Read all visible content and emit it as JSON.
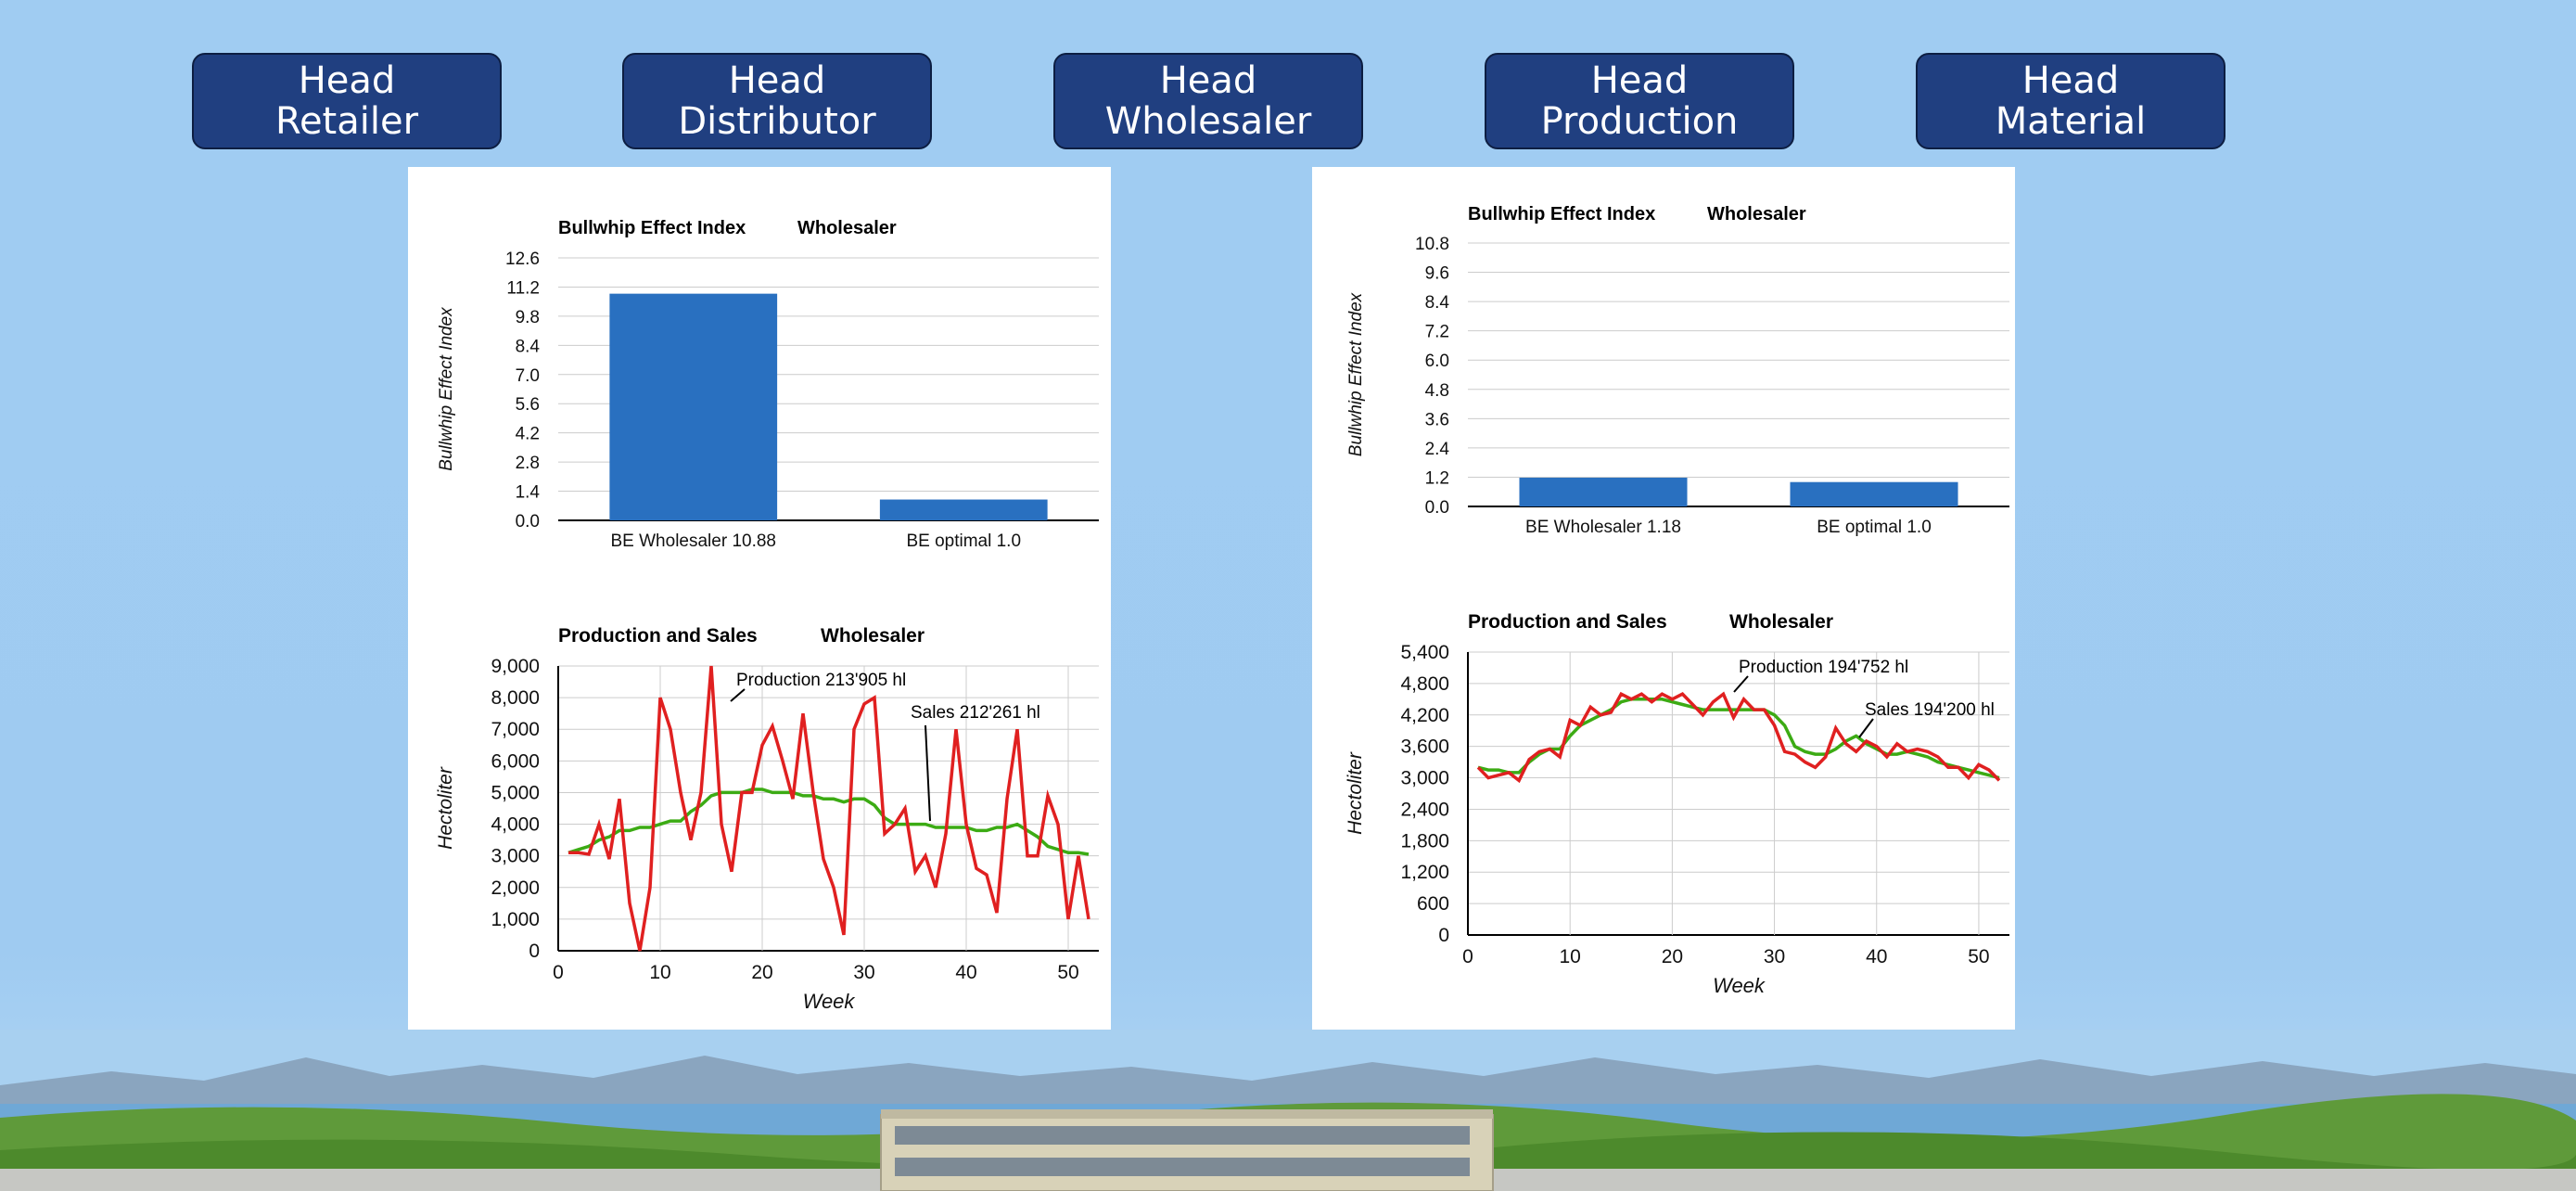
{
  "nav": [
    {
      "line1": "Head",
      "line2": "Retailer"
    },
    {
      "line1": "Head",
      "line2": "Distributor"
    },
    {
      "line1": "Head",
      "line2": "Wholesaler"
    },
    {
      "line1": "Head",
      "line2": "Production"
    },
    {
      "line1": "Head",
      "line2": "Material"
    }
  ],
  "colors": {
    "bar": "#2970c0",
    "production": "#e02020",
    "sales": "#3cab14",
    "button": "#203f80"
  },
  "panels": [
    {
      "bullwhip": {
        "title": "Bullwhip Effect Index",
        "entity": "Wholesaler",
        "ylabel": "Bullwhip Effect Index",
        "ticks": [
          "0.0",
          "1.4",
          "2.8",
          "4.2",
          "5.6",
          "7.0",
          "8.4",
          "9.8",
          "11.2",
          "12.6"
        ],
        "ymax": 12.6,
        "categories": [
          "BE Wholesaler 10.88",
          "BE optimal 1.0"
        ],
        "values": [
          10.88,
          1.0
        ]
      },
      "production": {
        "title": "Production and Sales",
        "entity": "Wholesaler",
        "ylabel": "Hectoliter",
        "xlabel": "Week",
        "yticks": [
          "0",
          "1,000",
          "2,000",
          "3,000",
          "4,000",
          "5,000",
          "6,000",
          "7,000",
          "8,000",
          "9,000"
        ],
        "ymax": 9000,
        "xticks": [
          "0",
          "10",
          "20",
          "30",
          "40",
          "50"
        ],
        "xmax": 53,
        "production_label": "Production 213'905 hl",
        "sales_label": "Sales 212'261 hl"
      }
    },
    {
      "bullwhip": {
        "title": "Bullwhip Effect Index",
        "entity": "Wholesaler",
        "ylabel": "Bullwhip Effect Index",
        "ticks": [
          "0.0",
          "1.2",
          "2.4",
          "3.6",
          "4.8",
          "6.0",
          "7.2",
          "8.4",
          "9.6",
          "10.8"
        ],
        "ymax": 10.8,
        "categories": [
          "BE Wholesaler 1.18",
          "BE optimal 1.0"
        ],
        "values": [
          1.18,
          1.0
        ]
      },
      "production": {
        "title": "Production and Sales",
        "entity": "Wholesaler",
        "ylabel": "Hectoliter",
        "xlabel": "Week",
        "yticks": [
          "0",
          "600",
          "1,200",
          "1,800",
          "2,400",
          "3,000",
          "3,600",
          "4,200",
          "4,800",
          "5,400"
        ],
        "ymax": 5400,
        "xticks": [
          "0",
          "10",
          "20",
          "30",
          "40",
          "50"
        ],
        "xmax": 53,
        "production_label": "Production 194'752 hl",
        "sales_label": "Sales 194'200 hl"
      }
    }
  ],
  "chart_data": [
    {
      "type": "bar",
      "title": "Bullwhip Effect Index",
      "ylabel": "Bullwhip Effect Index",
      "categories": [
        "BE Wholesaler 10.88",
        "BE optimal 1.0"
      ],
      "values": [
        10.88,
        1.0
      ],
      "ylim": [
        0,
        12.6
      ]
    },
    {
      "type": "line",
      "title": "Production and Sales",
      "xlabel": "Week",
      "ylabel": "Hectoliter",
      "xlim": [
        0,
        53
      ],
      "ylim": [
        0,
        9000
      ],
      "x": [
        1,
        2,
        3,
        4,
        5,
        6,
        7,
        8,
        9,
        10,
        11,
        12,
        13,
        14,
        15,
        16,
        17,
        18,
        19,
        20,
        21,
        22,
        23,
        24,
        25,
        26,
        27,
        28,
        29,
        30,
        31,
        32,
        33,
        34,
        35,
        36,
        37,
        38,
        39,
        40,
        41,
        42,
        43,
        44,
        45,
        46,
        47,
        48,
        49,
        50,
        51,
        52
      ],
      "series": [
        {
          "name": "Production 213'905 hl",
          "values": [
            3100,
            3100,
            3050,
            4000,
            2900,
            4800,
            1500,
            0,
            2000,
            8000,
            7000,
            5000,
            3500,
            5000,
            9000,
            4000,
            2500,
            5000,
            5000,
            6500,
            7100,
            6000,
            4800,
            7500,
            5000,
            2900,
            2000,
            500,
            7000,
            7800,
            8000,
            3700,
            4000,
            4500,
            2500,
            3000,
            2000,
            3700,
            7000,
            4000,
            2600,
            2400,
            1200,
            4800,
            7000,
            3000,
            3000,
            4900,
            4000,
            1000,
            3000,
            1000
          ]
        },
        {
          "name": "Sales 212'261 hl",
          "values": [
            3100,
            3200,
            3300,
            3500,
            3600,
            3800,
            3800,
            3900,
            3900,
            4000,
            4100,
            4100,
            4400,
            4600,
            4900,
            5000,
            5000,
            5000,
            5100,
            5100,
            5000,
            5000,
            5000,
            4900,
            4900,
            4800,
            4800,
            4700,
            4800,
            4800,
            4600,
            4200,
            4000,
            4000,
            4000,
            4000,
            3900,
            3900,
            3900,
            3900,
            3800,
            3800,
            3900,
            3900,
            4000,
            3800,
            3600,
            3300,
            3200,
            3100,
            3100,
            3050
          ]
        }
      ]
    },
    {
      "type": "bar",
      "title": "Bullwhip Effect Index",
      "ylabel": "Bullwhip Effect Index",
      "categories": [
        "BE Wholesaler 1.18",
        "BE optimal 1.0"
      ],
      "values": [
        1.18,
        1.0
      ],
      "ylim": [
        0,
        10.8
      ]
    },
    {
      "type": "line",
      "title": "Production and Sales",
      "xlabel": "Week",
      "ylabel": "Hectoliter",
      "xlim": [
        0,
        53
      ],
      "ylim": [
        0,
        5400
      ],
      "x": [
        1,
        2,
        3,
        4,
        5,
        6,
        7,
        8,
        9,
        10,
        11,
        12,
        13,
        14,
        15,
        16,
        17,
        18,
        19,
        20,
        21,
        22,
        23,
        24,
        25,
        26,
        27,
        28,
        29,
        30,
        31,
        32,
        33,
        34,
        35,
        36,
        37,
        38,
        39,
        40,
        41,
        42,
        43,
        44,
        45,
        46,
        47,
        48,
        49,
        50,
        51,
        52
      ],
      "series": [
        {
          "name": "Production 194'752 hl",
          "values": [
            3200,
            3000,
            3050,
            3100,
            2950,
            3350,
            3500,
            3550,
            3400,
            4100,
            4000,
            4350,
            4200,
            4250,
            4600,
            4500,
            4600,
            4450,
            4600,
            4500,
            4600,
            4400,
            4200,
            4450,
            4600,
            4150,
            4500,
            4300,
            4300,
            4000,
            3500,
            3450,
            3300,
            3200,
            3400,
            3950,
            3650,
            3500,
            3700,
            3600,
            3400,
            3650,
            3500,
            3550,
            3500,
            3400,
            3200,
            3200,
            3000,
            3250,
            3150,
            2950
          ]
        },
        {
          "name": "Sales 194'200 hl",
          "values": [
            3200,
            3150,
            3150,
            3100,
            3100,
            3300,
            3450,
            3550,
            3550,
            3800,
            4000,
            4100,
            4200,
            4300,
            4450,
            4500,
            4500,
            4500,
            4500,
            4450,
            4400,
            4350,
            4300,
            4300,
            4300,
            4300,
            4300,
            4300,
            4300,
            4200,
            4000,
            3600,
            3500,
            3450,
            3450,
            3550,
            3700,
            3800,
            3650,
            3550,
            3450,
            3450,
            3500,
            3450,
            3400,
            3300,
            3250,
            3200,
            3150,
            3100,
            3050,
            3000
          ]
        }
      ]
    }
  ]
}
